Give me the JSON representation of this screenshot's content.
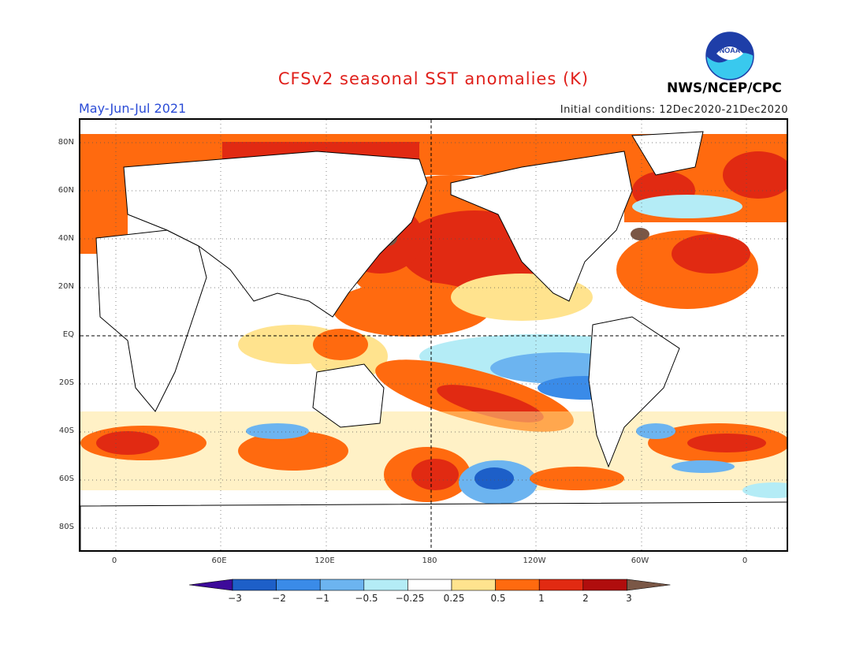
{
  "header": {
    "title": "CFSv2 seasonal SST anomalies (K)",
    "period": "May-Jun-Jul 2021",
    "initial_conditions": "Initial conditions: 12Dec2020-21Dec2020",
    "organization": "NWS/NCEP/CPC",
    "logo_text": "NOAA"
  },
  "colors": {
    "title": "#e0201b",
    "period": "#2a4bd6",
    "land": "#ffffff"
  },
  "axes": {
    "lat_labels": [
      "80N",
      "60N",
      "40N",
      "20N",
      "EQ",
      "20S",
      "40S",
      "60S",
      "80S"
    ],
    "lon_labels": [
      "0",
      "60E",
      "120E",
      "180",
      "120W",
      "60W",
      "0"
    ]
  },
  "colorbar": {
    "labels": [
      "−3",
      "−2",
      "−1",
      "−0.5",
      "−0.25",
      "0.25",
      "0.5",
      "1",
      "2",
      "3"
    ],
    "colors": [
      "#3d0a9a",
      "#1d5fc8",
      "#3a8be8",
      "#6cb4f0",
      "#b4ecf6",
      "#ffffff",
      "#ffe38e",
      "#ff6a0f",
      "#e12a12",
      "#b00d0d",
      "#7a5746"
    ]
  }
}
